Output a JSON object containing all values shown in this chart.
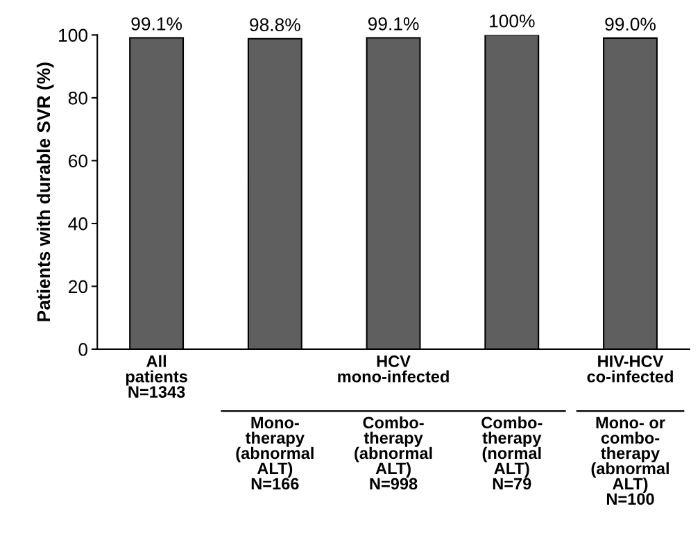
{
  "chart_data": {
    "type": "bar",
    "ylabel": "Patients with durable SVR (%)",
    "categories": [
      "All\npatients\nN=1343",
      "Mono-\ntherapy\n(abnormal\nALT)\nN=166",
      "Combo-\ntherapy\n(abnormal\nALT)\nN=998",
      "Combo-\ntherapy\n(normal\nALT)\nN=79",
      "Mono- or\ncombo-\ntherapy\n(abnormal\nALT)\nN=100"
    ],
    "values": [
      99.1,
      98.8,
      99.1,
      100,
      99.0
    ],
    "value_labels": [
      "99.1%",
      "98.8%",
      "99.1%",
      "100%",
      "99.0%"
    ],
    "color": "#5f5f5f",
    "ylim": [
      0,
      100
    ],
    "yticks": [
      0,
      20,
      40,
      60,
      80,
      100
    ],
    "annotations": [
      "HCV\nmono-infected",
      "HIV-HCV\nco-infected"
    ],
    "grid": false
  }
}
